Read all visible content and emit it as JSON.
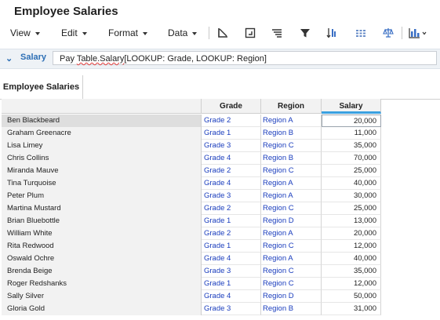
{
  "app": {
    "title": "Employee Salaries"
  },
  "menus": [
    {
      "label": "View"
    },
    {
      "label": "Edit"
    },
    {
      "label": "Format"
    },
    {
      "label": "Data"
    }
  ],
  "toolbar_icons": [
    "axis-icon",
    "frame-icon",
    "align-icon",
    "filter-icon",
    "sort-icon",
    "grid-icon",
    "balance-icon",
    "chart-icon"
  ],
  "formula_bar": {
    "name": "Salary",
    "prefix": "Pay ",
    "squiggle": "Table.Salary",
    "suffix": "[LOOKUP: Grade, LOOKUP: Region]"
  },
  "tab": {
    "label": "Employee Salaries"
  },
  "table": {
    "columns": [
      "Grade",
      "Region",
      "Salary"
    ],
    "rows": [
      {
        "name": "Ben Blackbeard",
        "grade": "Grade 2",
        "region": "Region A",
        "salary": "20,000"
      },
      {
        "name": "Graham Greenacre",
        "grade": "Grade 1",
        "region": "Region B",
        "salary": "11,000"
      },
      {
        "name": "Lisa Limey",
        "grade": "Grade 3",
        "region": "Region C",
        "salary": "35,000"
      },
      {
        "name": "Chris Collins",
        "grade": "Grade 4",
        "region": "Region B",
        "salary": "70,000"
      },
      {
        "name": "Miranda Mauve",
        "grade": "Grade 2",
        "region": "Region C",
        "salary": "25,000"
      },
      {
        "name": "Tina Turquoise",
        "grade": "Grade 4",
        "region": "Region A",
        "salary": "40,000"
      },
      {
        "name": "Peter Plum",
        "grade": "Grade 3",
        "region": "Region A",
        "salary": "30,000"
      },
      {
        "name": "Martina Mustard",
        "grade": "Grade 2",
        "region": "Region C",
        "salary": "25,000"
      },
      {
        "name": "Brian Bluebottle",
        "grade": "Grade 1",
        "region": "Region D",
        "salary": "13,000"
      },
      {
        "name": "William White",
        "grade": "Grade 2",
        "region": "Region A",
        "salary": "20,000"
      },
      {
        "name": "Rita Redwood",
        "grade": "Grade 1",
        "region": "Region C",
        "salary": "12,000"
      },
      {
        "name": "Oswald Ochre",
        "grade": "Grade 4",
        "region": "Region A",
        "salary": "40,000"
      },
      {
        "name": "Brenda Beige",
        "grade": "Grade 3",
        "region": "Region C",
        "salary": "35,000"
      },
      {
        "name": "Roger Redshanks",
        "grade": "Grade 1",
        "region": "Region C",
        "salary": "12,000"
      },
      {
        "name": "Sally Silver",
        "grade": "Grade 4",
        "region": "Region D",
        "salary": "50,000"
      },
      {
        "name": "Gloria Gold",
        "grade": "Grade 3",
        "region": "Region B",
        "salary": "31,000"
      }
    ]
  }
}
